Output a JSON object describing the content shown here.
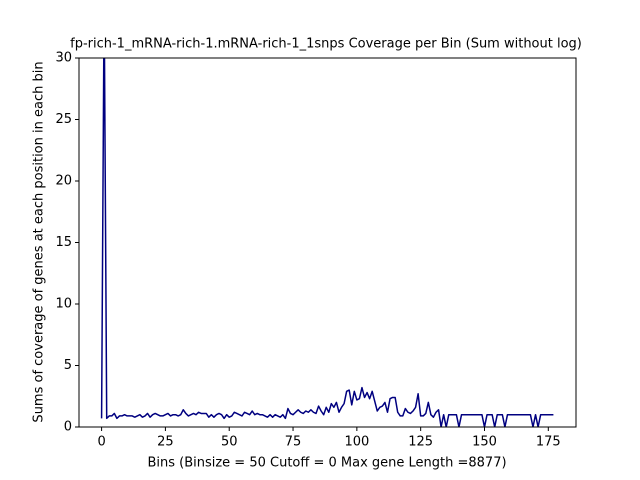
{
  "chart_data": {
    "type": "line",
    "title": "fp-rich-1_mRNA-rich-1.mRNA-rich-1_1snps Coverage per Bin (Sum without log)",
    "x_label": "Bins  (Binsize = 50 Cutoff = 0 Max gene Length =8877)",
    "y_label": "Sums of coverage of genes at each position in each bin",
    "color": "#000080",
    "x": [
      0,
      1,
      2,
      3,
      4,
      5,
      6,
      7,
      8,
      9,
      10,
      11,
      12,
      13,
      14,
      15,
      16,
      17,
      18,
      19,
      20,
      21,
      22,
      23,
      24,
      25,
      26,
      27,
      28,
      29,
      30,
      31,
      32,
      33,
      34,
      35,
      36,
      37,
      38,
      39,
      40,
      41,
      42,
      43,
      44,
      45,
      46,
      47,
      48,
      49,
      50,
      51,
      52,
      53,
      54,
      55,
      56,
      57,
      58,
      59,
      60,
      61,
      62,
      63,
      64,
      65,
      66,
      67,
      68,
      69,
      70,
      71,
      72,
      73,
      74,
      75,
      76,
      77,
      78,
      79,
      80,
      81,
      82,
      83,
      84,
      85,
      86,
      87,
      88,
      89,
      90,
      91,
      92,
      93,
      94,
      95,
      96,
      97,
      98,
      99,
      100,
      101,
      102,
      103,
      104,
      105,
      106,
      107,
      108,
      109,
      110,
      111,
      112,
      113,
      114,
      115,
      116,
      117,
      118,
      119,
      120,
      121,
      122,
      123,
      124,
      125,
      126,
      127,
      128,
      129,
      130,
      131,
      132,
      133,
      134,
      135,
      136,
      137,
      138,
      139,
      140,
      141,
      142,
      143,
      144,
      145,
      146,
      147,
      148,
      149,
      150,
      151,
      152,
      153,
      154,
      155,
      156,
      157,
      158,
      159,
      160,
      161,
      162,
      163,
      164,
      165,
      166,
      167,
      168,
      169,
      170,
      171,
      172,
      173,
      174,
      175,
      176,
      177
    ],
    "values": [
      0.7,
      35,
      0.7,
      0.9,
      0.9,
      1.1,
      0.7,
      0.9,
      0.9,
      1.0,
      0.9,
      0.9,
      0.9,
      0.8,
      0.9,
      1.0,
      0.8,
      0.9,
      1.1,
      0.8,
      1.0,
      1.1,
      1.0,
      0.9,
      0.9,
      1.0,
      1.1,
      0.9,
      1.0,
      1.0,
      0.9,
      1.0,
      1.4,
      1.1,
      0.9,
      1.0,
      1.1,
      1.0,
      1.2,
      1.1,
      1.1,
      1.1,
      0.8,
      1.0,
      0.8,
      1.0,
      1.1,
      1.0,
      0.7,
      1.0,
      0.8,
      0.9,
      1.2,
      1.1,
      1.0,
      0.9,
      1.2,
      1.1,
      1.0,
      1.3,
      1.0,
      1.1,
      1.0,
      1.0,
      0.9,
      0.8,
      1.0,
      0.8,
      1.0,
      0.9,
      0.8,
      1.0,
      0.7,
      1.5,
      1.1,
      1.0,
      1.2,
      1.4,
      1.2,
      1.1,
      1.3,
      1.2,
      1.4,
      1.2,
      1.1,
      1.7,
      1.3,
      1.0,
      1.6,
      1.2,
      1.9,
      1.6,
      2.0,
      1.2,
      1.6,
      1.9,
      2.9,
      3.0,
      1.8,
      2.9,
      2.2,
      2.3,
      3.2,
      2.4,
      2.8,
      2.3,
      2.9,
      2.1,
      1.3,
      1.6,
      1.7,
      2.0,
      1.2,
      2.3,
      2.4,
      2.4,
      1.2,
      0.9,
      0.9,
      1.5,
      1.2,
      1.1,
      1.3,
      1.6,
      2.7,
      0.9,
      0.9,
      1.1,
      2.0,
      1.0,
      0.8,
      1.2,
      1.4,
      0,
      1.0,
      0,
      1.0,
      1.0,
      1.0,
      1.0,
      0,
      1.0,
      1.0,
      1.0,
      1.0,
      1.0,
      1.0,
      1.0,
      1.0,
      1.0,
      0,
      1.0,
      1.0,
      1.0,
      0,
      1.0,
      1.0,
      1.0,
      0,
      1.0,
      1.0,
      1.0,
      1.0,
      1.0,
      1.0,
      1.0,
      1.0,
      1.0,
      1.0,
      0,
      1.0,
      0,
      1.0,
      1.0,
      1.0,
      1.0,
      1.0,
      1.0
    ],
    "xlim": [
      -8.85,
      185.85
    ],
    "ylim": [
      0,
      30
    ],
    "xticks": [
      0,
      25,
      50,
      75,
      100,
      125,
      150,
      175
    ],
    "yticks": [
      0,
      5,
      10,
      15,
      20,
      25,
      30
    ]
  }
}
